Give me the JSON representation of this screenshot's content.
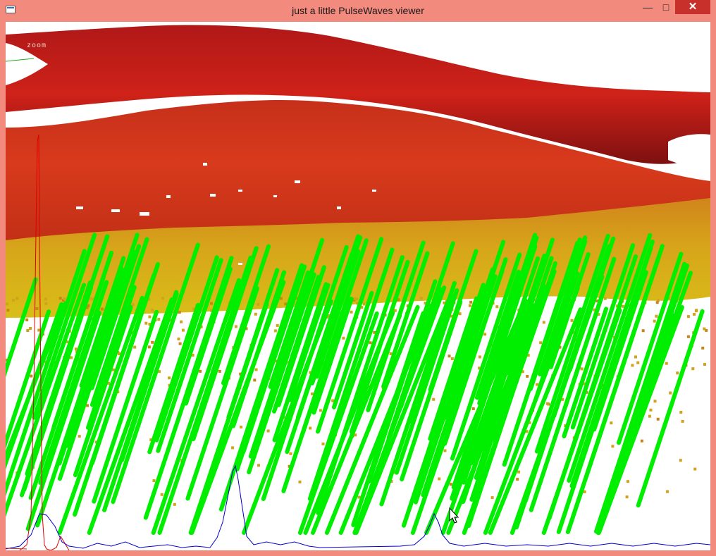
{
  "window": {
    "title": "just a little PulseWaves viewer",
    "controls": {
      "minimize": "—",
      "maximize": "□",
      "close": "✕"
    }
  },
  "viewer": {
    "mode_label": "zoom",
    "colors": {
      "top_dark": "#8a1414",
      "mid_red": "#d8281c",
      "orange": "#c95a18",
      "yellow": "#d6b01a",
      "pulse_green": "#00ee00",
      "waveform_red": "#dd0000",
      "waveform_blue": "#0000cc",
      "background": "#ffffff"
    }
  }
}
